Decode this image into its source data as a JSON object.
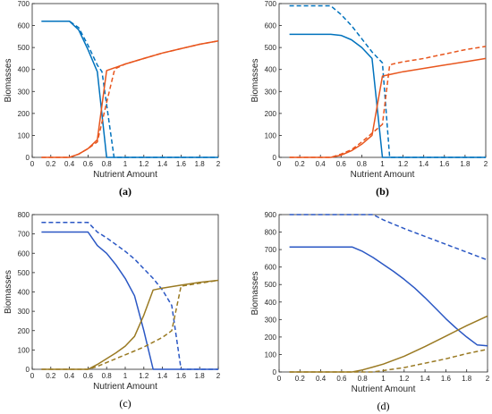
{
  "colors": {
    "blue_ab": "#0072bd",
    "red_ab": "#e8561e",
    "blue_cd": "#2a57c4",
    "gold_cd": "#9a7a23",
    "axis": "#262626",
    "grid_box": "#262626",
    "bg": "#ffffff"
  },
  "chart_data": [
    {
      "type": "line",
      "panel_label": "(a)",
      "xlabel": "Nutrient Amount",
      "ylabel": "Biomasses",
      "xlim": [
        0,
        2
      ],
      "ylim": [
        0,
        700
      ],
      "xticks": [
        "0",
        "0.2",
        "0.4",
        "0.6",
        "0.8",
        "1",
        "1.2",
        "1.4",
        "1.6",
        "1.8",
        "2"
      ],
      "yticks": [
        "0",
        "100",
        "200",
        "300",
        "400",
        "500",
        "600",
        "700"
      ],
      "grid": false,
      "series": [
        {
          "color_key": "blue_ab",
          "dash": "solid",
          "x": [
            0.1,
            0.4,
            0.5,
            0.6,
            0.7,
            0.8,
            0.85,
            2.0
          ],
          "y": [
            620,
            620,
            580,
            490,
            390,
            0,
            0,
            0
          ]
        },
        {
          "color_key": "blue_ab",
          "dash": "dashed",
          "x": [
            0.1,
            0.4,
            0.5,
            0.6,
            0.7,
            0.75,
            0.88,
            2.0
          ],
          "y": [
            620,
            620,
            590,
            510,
            420,
            390,
            0,
            0
          ]
        },
        {
          "color_key": "red_ab",
          "dash": "solid",
          "x": [
            0.1,
            0.4,
            0.5,
            0.6,
            0.7,
            0.8,
            0.9,
            1.0,
            1.2,
            1.4,
            1.6,
            1.8,
            2.0
          ],
          "y": [
            0,
            0,
            15,
            40,
            80,
            395,
            410,
            425,
            450,
            475,
            495,
            515,
            530
          ]
        },
        {
          "color_key": "red_ab",
          "dash": "dashed",
          "x": [
            0.1,
            0.4,
            0.5,
            0.6,
            0.7,
            0.8,
            0.88,
            0.9,
            1.0,
            1.2,
            1.4,
            1.6,
            1.8,
            2.0
          ],
          "y": [
            0,
            0,
            15,
            40,
            70,
            250,
            390,
            405,
            425,
            450,
            475,
            495,
            515,
            530
          ]
        }
      ]
    },
    {
      "type": "line",
      "panel_label": "(b)",
      "xlabel": "Nutrient Amount",
      "ylabel": "Biomasses",
      "xlim": [
        0,
        2
      ],
      "ylim": [
        0,
        700
      ],
      "xticks": [
        "0",
        "0.2",
        "0.4",
        "0.6",
        "0.8",
        "1",
        "1.2",
        "1.4",
        "1.6",
        "1.8",
        "2"
      ],
      "yticks": [
        "0",
        "100",
        "200",
        "300",
        "400",
        "500",
        "600",
        "700"
      ],
      "grid": false,
      "series": [
        {
          "color_key": "blue_ab",
          "dash": "solid",
          "x": [
            0.1,
            0.5,
            0.6,
            0.7,
            0.8,
            0.9,
            1.0,
            1.05,
            2.0
          ],
          "y": [
            560,
            560,
            555,
            535,
            500,
            450,
            0,
            0,
            0
          ]
        },
        {
          "color_key": "blue_ab",
          "dash": "dashed",
          "x": [
            0.1,
            0.5,
            0.6,
            0.7,
            0.8,
            0.9,
            1.0,
            1.07,
            2.0
          ],
          "y": [
            690,
            690,
            650,
            600,
            540,
            480,
            430,
            0,
            0
          ]
        },
        {
          "color_key": "red_ab",
          "dash": "solid",
          "x": [
            0.1,
            0.5,
            0.6,
            0.7,
            0.8,
            0.9,
            1.0,
            1.1,
            1.2,
            1.4,
            1.6,
            1.8,
            2.0
          ],
          "y": [
            0,
            0,
            10,
            30,
            60,
            100,
            370,
            380,
            390,
            405,
            420,
            435,
            450
          ]
        },
        {
          "color_key": "red_ab",
          "dash": "dashed",
          "x": [
            0.1,
            0.5,
            0.6,
            0.7,
            0.8,
            0.9,
            1.0,
            1.07,
            1.1,
            1.2,
            1.4,
            1.6,
            1.8,
            2.0
          ],
          "y": [
            0,
            0,
            15,
            35,
            70,
            110,
            150,
            420,
            425,
            435,
            450,
            470,
            490,
            505
          ]
        }
      ]
    },
    {
      "type": "line",
      "panel_label": "(c)",
      "xlabel": "Nutrient Amount",
      "ylabel": "Biomasses",
      "xlim": [
        0,
        2
      ],
      "ylim": [
        0,
        800
      ],
      "xticks": [
        "0",
        "0.2",
        "0.4",
        "0.6",
        "0.8",
        "1",
        "1.2",
        "1.4",
        "1.6",
        "1.8",
        "2"
      ],
      "yticks": [
        "0",
        "100",
        "200",
        "300",
        "400",
        "500",
        "600",
        "700",
        "800"
      ],
      "grid": false,
      "series": [
        {
          "color_key": "blue_cd",
          "dash": "solid",
          "x": [
            0.1,
            0.6,
            0.7,
            0.8,
            0.9,
            1.0,
            1.1,
            1.2,
            1.3,
            1.4,
            2.0
          ],
          "y": [
            710,
            710,
            640,
            600,
            540,
            470,
            380,
            200,
            0,
            0,
            0
          ]
        },
        {
          "color_key": "blue_cd",
          "dash": "dashed",
          "x": [
            0.1,
            0.6,
            0.7,
            0.8,
            0.9,
            1.0,
            1.1,
            1.2,
            1.3,
            1.4,
            1.5,
            1.6,
            1.7,
            2.0
          ],
          "y": [
            760,
            760,
            710,
            680,
            645,
            610,
            570,
            520,
            470,
            410,
            330,
            0,
            0,
            0
          ]
        },
        {
          "color_key": "gold_cd",
          "dash": "solid",
          "x": [
            0.1,
            0.6,
            0.7,
            0.8,
            0.9,
            1.0,
            1.1,
            1.2,
            1.3,
            1.4,
            1.6,
            1.8,
            2.0
          ],
          "y": [
            0,
            0,
            25,
            55,
            85,
            120,
            170,
            280,
            410,
            420,
            435,
            450,
            460
          ]
        },
        {
          "color_key": "gold_cd",
          "dash": "dashed",
          "x": [
            0.1,
            0.6,
            0.7,
            0.8,
            0.9,
            1.0,
            1.1,
            1.2,
            1.3,
            1.4,
            1.5,
            1.6,
            1.8,
            2.0
          ],
          "y": [
            0,
            0,
            15,
            35,
            55,
            75,
            95,
            115,
            140,
            165,
            200,
            430,
            445,
            460
          ]
        }
      ]
    },
    {
      "type": "line",
      "panel_label": "(d)",
      "xlabel": "Nutrient Amount",
      "ylabel": "Biomasses",
      "xlim": [
        0,
        2
      ],
      "ylim": [
        0,
        900
      ],
      "xticks": [
        "0",
        "0.2",
        "0.4",
        "0.6",
        "0.8",
        "1",
        "1.2",
        "1.4",
        "1.6",
        "1.8",
        "2"
      ],
      "yticks": [
        "0",
        "100",
        "200",
        "300",
        "400",
        "500",
        "600",
        "700",
        "800",
        "900"
      ],
      "grid": false,
      "series": [
        {
          "color_key": "blue_cd",
          "dash": "solid",
          "x": [
            0.1,
            0.7,
            0.8,
            0.9,
            1.0,
            1.1,
            1.2,
            1.3,
            1.4,
            1.5,
            1.6,
            1.7,
            1.8,
            1.9,
            2.0
          ],
          "y": [
            715,
            715,
            690,
            655,
            615,
            575,
            530,
            480,
            425,
            365,
            305,
            250,
            200,
            155,
            150
          ]
        },
        {
          "color_key": "blue_cd",
          "dash": "dashed",
          "x": [
            0.1,
            0.9,
            1.0,
            1.2,
            1.4,
            1.6,
            1.8,
            2.0
          ],
          "y": [
            900,
            900,
            870,
            820,
            775,
            730,
            685,
            640
          ]
        },
        {
          "color_key": "gold_cd",
          "dash": "solid",
          "x": [
            0.1,
            0.7,
            0.8,
            0.9,
            1.0,
            1.2,
            1.4,
            1.6,
            1.8,
            2.0
          ],
          "y": [
            0,
            0,
            12,
            28,
            45,
            90,
            145,
            205,
            265,
            320
          ]
        },
        {
          "color_key": "gold_cd",
          "dash": "dashed",
          "x": [
            0.1,
            0.9,
            1.0,
            1.2,
            1.4,
            1.6,
            1.8,
            2.0
          ],
          "y": [
            0,
            0,
            8,
            25,
            50,
            75,
            105,
            130
          ]
        }
      ]
    }
  ]
}
